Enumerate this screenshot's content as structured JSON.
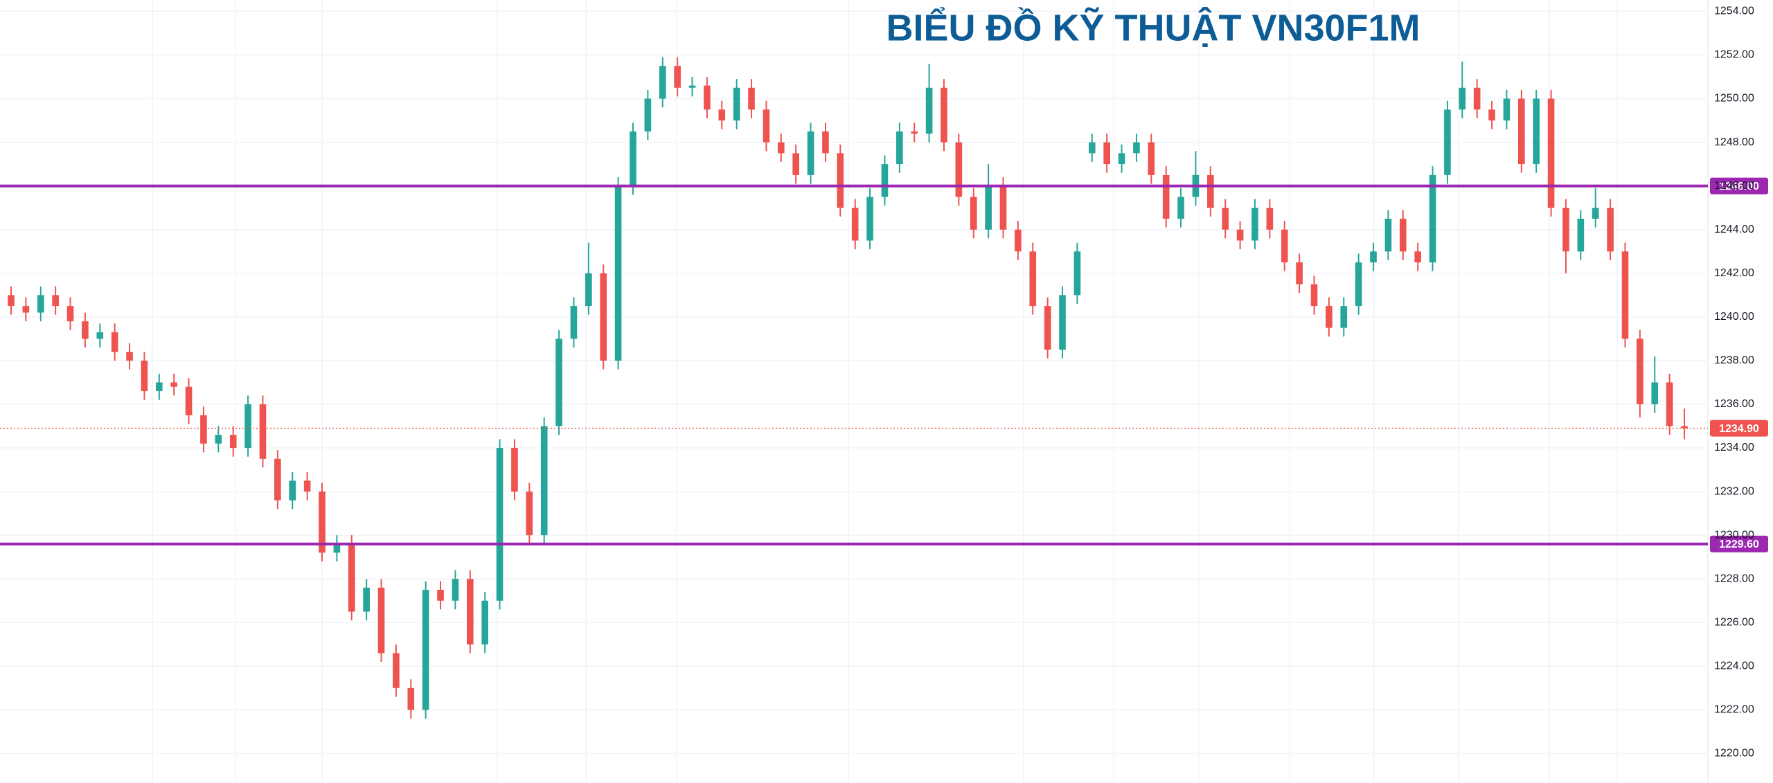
{
  "chart_data": {
    "type": "candlestick",
    "title": "BIỂU ĐỒ KỸ THUẬT VN30F1M",
    "up_color": "#26a69a",
    "down_color": "#ef5350",
    "level_color": "#9c27b0",
    "last_color": "#ef5350",
    "grid": true,
    "ylim": [
      1218.65,
      1254.52
    ],
    "yticks": [
      {
        "value": 1220,
        "label": "1220.00"
      },
      {
        "value": 1222,
        "label": "1222.00"
      },
      {
        "value": 1224,
        "label": "1224.00"
      },
      {
        "value": 1226,
        "label": "1226.00"
      },
      {
        "value": 1228,
        "label": "1228.00"
      },
      {
        "value": 1230,
        "label": "1230.00"
      },
      {
        "value": 1232,
        "label": "1232.00"
      },
      {
        "value": 1234,
        "label": "1234.00"
      },
      {
        "value": 1236,
        "label": "1236.00"
      },
      {
        "value": 1238,
        "label": "1238.00"
      },
      {
        "value": 1240,
        "label": "1240.00"
      },
      {
        "value": 1242,
        "label": "1242.00"
      },
      {
        "value": 1244,
        "label": "1244.00"
      },
      {
        "value": 1246,
        "label": "1246.00"
      },
      {
        "value": 1248,
        "label": "1248.00"
      },
      {
        "value": 1250,
        "label": "1250.00"
      },
      {
        "value": 1252,
        "label": "1252.00"
      },
      {
        "value": 1254,
        "label": "1254.00"
      }
    ],
    "levels": [
      {
        "value": 1246,
        "label": "1246.00"
      },
      {
        "value": 1229.6,
        "label": "1229.60"
      }
    ],
    "last_price": {
      "value": 1234.9,
      "label": "1234.90"
    },
    "open": [
      1241,
      1240.5,
      1240.2,
      1241,
      1240.5,
      1239.8,
      1239,
      1239.3,
      1238.4,
      1238,
      1236.6,
      1237,
      1236.8,
      1235.5,
      1234.2,
      1234.6,
      1234,
      1236,
      1233.5,
      1231.6,
      1232.5,
      1232,
      1229.2,
      1229.6,
      1226.5,
      1227.6,
      1224.6,
      1223,
      1222,
      1227.5,
      1227,
      1228,
      1225,
      1227,
      1234,
      1232,
      1230,
      1235,
      1239,
      1240.5,
      1242,
      1238,
      1246,
      1248.5,
      1250,
      1251.5,
      1250.5,
      1250.6,
      1249.5,
      1249,
      1250.5,
      1249.5,
      1248,
      1247.5,
      1246.5,
      1248.5,
      1247.5,
      1245,
      1243.5,
      1245.5,
      1247,
      1248.5,
      1248.4,
      1250.5,
      1248,
      1245.5,
      1244,
      1246,
      1244,
      1243,
      1240.5,
      1238.5,
      1241,
      1247.5,
      1248,
      1247,
      1247.5,
      1248,
      1246.5,
      1244.5,
      1245.5,
      1246.5,
      1245,
      1244,
      1243.5,
      1245,
      1244,
      1242.5,
      1241.5,
      1240.5,
      1239.5,
      1240.5,
      1242.5,
      1243,
      1244.5,
      1243,
      1242.5,
      1246.5,
      1249.5,
      1250.5,
      1249.5,
      1249,
      1250,
      1247,
      1250,
      1245,
      1243,
      1244.5,
      1245,
      1243,
      1239,
      1236,
      1237,
      1235
    ],
    "high": [
      1241.4,
      1240.9,
      1241.4,
      1241.4,
      1240.9,
      1240.2,
      1239.7,
      1239.7,
      1238.8,
      1238.4,
      1237.4,
      1237.4,
      1237.2,
      1235.9,
      1235,
      1235,
      1236.4,
      1236.4,
      1233.9,
      1232.9,
      1232.9,
      1232.4,
      1230,
      1230,
      1228,
      1228,
      1225,
      1223.4,
      1227.9,
      1227.9,
      1228.4,
      1228.4,
      1227.4,
      1234.4,
      1234.4,
      1232.4,
      1235.4,
      1239.4,
      1240.9,
      1243.4,
      1242.4,
      1246.4,
      1248.9,
      1250.4,
      1251.9,
      1251.9,
      1251,
      1251,
      1249.9,
      1250.9,
      1250.9,
      1249.9,
      1248.4,
      1247.9,
      1248.9,
      1248.9,
      1247.9,
      1245.4,
      1245.9,
      1247.4,
      1248.9,
      1248.9,
      1251.6,
      1250.9,
      1248.4,
      1245.9,
      1247,
      1246.4,
      1244.4,
      1243.4,
      1240.9,
      1241.4,
      1243.4,
      1248.4,
      1248.4,
      1247.9,
      1248.4,
      1248.4,
      1246.9,
      1245.9,
      1247.6,
      1246.9,
      1245.4,
      1244.4,
      1245.4,
      1245.4,
      1244.4,
      1242.9,
      1241.9,
      1240.9,
      1240.9,
      1242.9,
      1243.4,
      1244.9,
      1244.9,
      1243.4,
      1246.9,
      1249.9,
      1251.7,
      1250.9,
      1249.9,
      1250.4,
      1250.4,
      1250.4,
      1250.4,
      1245.4,
      1244.9,
      1245.9,
      1245.4,
      1243.4,
      1239.4,
      1238.2,
      1237.4,
      1235.8
    ],
    "low": [
      1240.1,
      1239.8,
      1239.8,
      1240.1,
      1239.4,
      1238.6,
      1238.6,
      1238,
      1237.6,
      1236.2,
      1236.2,
      1236.4,
      1235.1,
      1233.8,
      1233.8,
      1233.6,
      1233.6,
      1233.1,
      1231.2,
      1231.2,
      1231.6,
      1228.8,
      1228.8,
      1226.1,
      1226.1,
      1224.2,
      1222.6,
      1221.6,
      1221.6,
      1226.6,
      1226.6,
      1224.6,
      1224.6,
      1226.6,
      1231.6,
      1229.6,
      1229.6,
      1234.6,
      1238.6,
      1240.1,
      1237.6,
      1237.6,
      1245.6,
      1248.1,
      1249.6,
      1250.1,
      1250.1,
      1249.1,
      1248.6,
      1248.6,
      1249.1,
      1247.6,
      1247.1,
      1246.1,
      1246.1,
      1247.1,
      1244.6,
      1243.1,
      1243.1,
      1245.1,
      1246.6,
      1248,
      1248,
      1247.6,
      1245.1,
      1243.6,
      1243.6,
      1243.6,
      1242.6,
      1240.1,
      1238.1,
      1238.1,
      1240.6,
      1247.1,
      1246.6,
      1246.6,
      1247.1,
      1246.1,
      1244.1,
      1244.1,
      1245.1,
      1244.6,
      1243.6,
      1243.1,
      1243.1,
      1243.6,
      1242.1,
      1241.1,
      1240.1,
      1239.1,
      1239.1,
      1240.1,
      1242.1,
      1242.6,
      1242.6,
      1242.1,
      1242.1,
      1246.1,
      1249.1,
      1249.1,
      1248.6,
      1248.6,
      1246.6,
      1246.6,
      1244.6,
      1242,
      1242.6,
      1244.1,
      1242.6,
      1238.6,
      1235.4,
      1235.6,
      1234.6,
      1234.4
    ],
    "close": [
      1240.5,
      1240.2,
      1241,
      1240.5,
      1239.8,
      1239,
      1239.3,
      1238.4,
      1238,
      1236.6,
      1237,
      1236.8,
      1235.5,
      1234.2,
      1234.6,
      1234,
      1236,
      1233.5,
      1231.6,
      1232.5,
      1232,
      1229.2,
      1229.6,
      1226.5,
      1227.6,
      1224.6,
      1223,
      1222,
      1227.5,
      1227,
      1228,
      1225,
      1227,
      1234,
      1232,
      1230,
      1235,
      1239,
      1240.5,
      1242,
      1238,
      1246,
      1248.5,
      1250,
      1251.5,
      1250.5,
      1250.6,
      1249.5,
      1249,
      1250.5,
      1249.5,
      1248,
      1247.5,
      1246.5,
      1248.5,
      1247.5,
      1245,
      1243.5,
      1245.5,
      1247,
      1248.5,
      1248.4,
      1250.5,
      1248,
      1245.5,
      1244,
      1246,
      1244,
      1243,
      1240.5,
      1238.5,
      1241,
      1243,
      1248,
      1247,
      1247.5,
      1248,
      1246.5,
      1244.5,
      1245.5,
      1246.5,
      1245,
      1244,
      1243.5,
      1245,
      1244,
      1242.5,
      1241.5,
      1240.5,
      1239.5,
      1240.5,
      1242.5,
      1243,
      1244.5,
      1243,
      1242.5,
      1246.5,
      1249.5,
      1250.5,
      1249.5,
      1249,
      1250,
      1247,
      1250,
      1245,
      1243,
      1244.5,
      1245,
      1243,
      1239,
      1236,
      1237,
      1235,
      1234.9
    ]
  }
}
